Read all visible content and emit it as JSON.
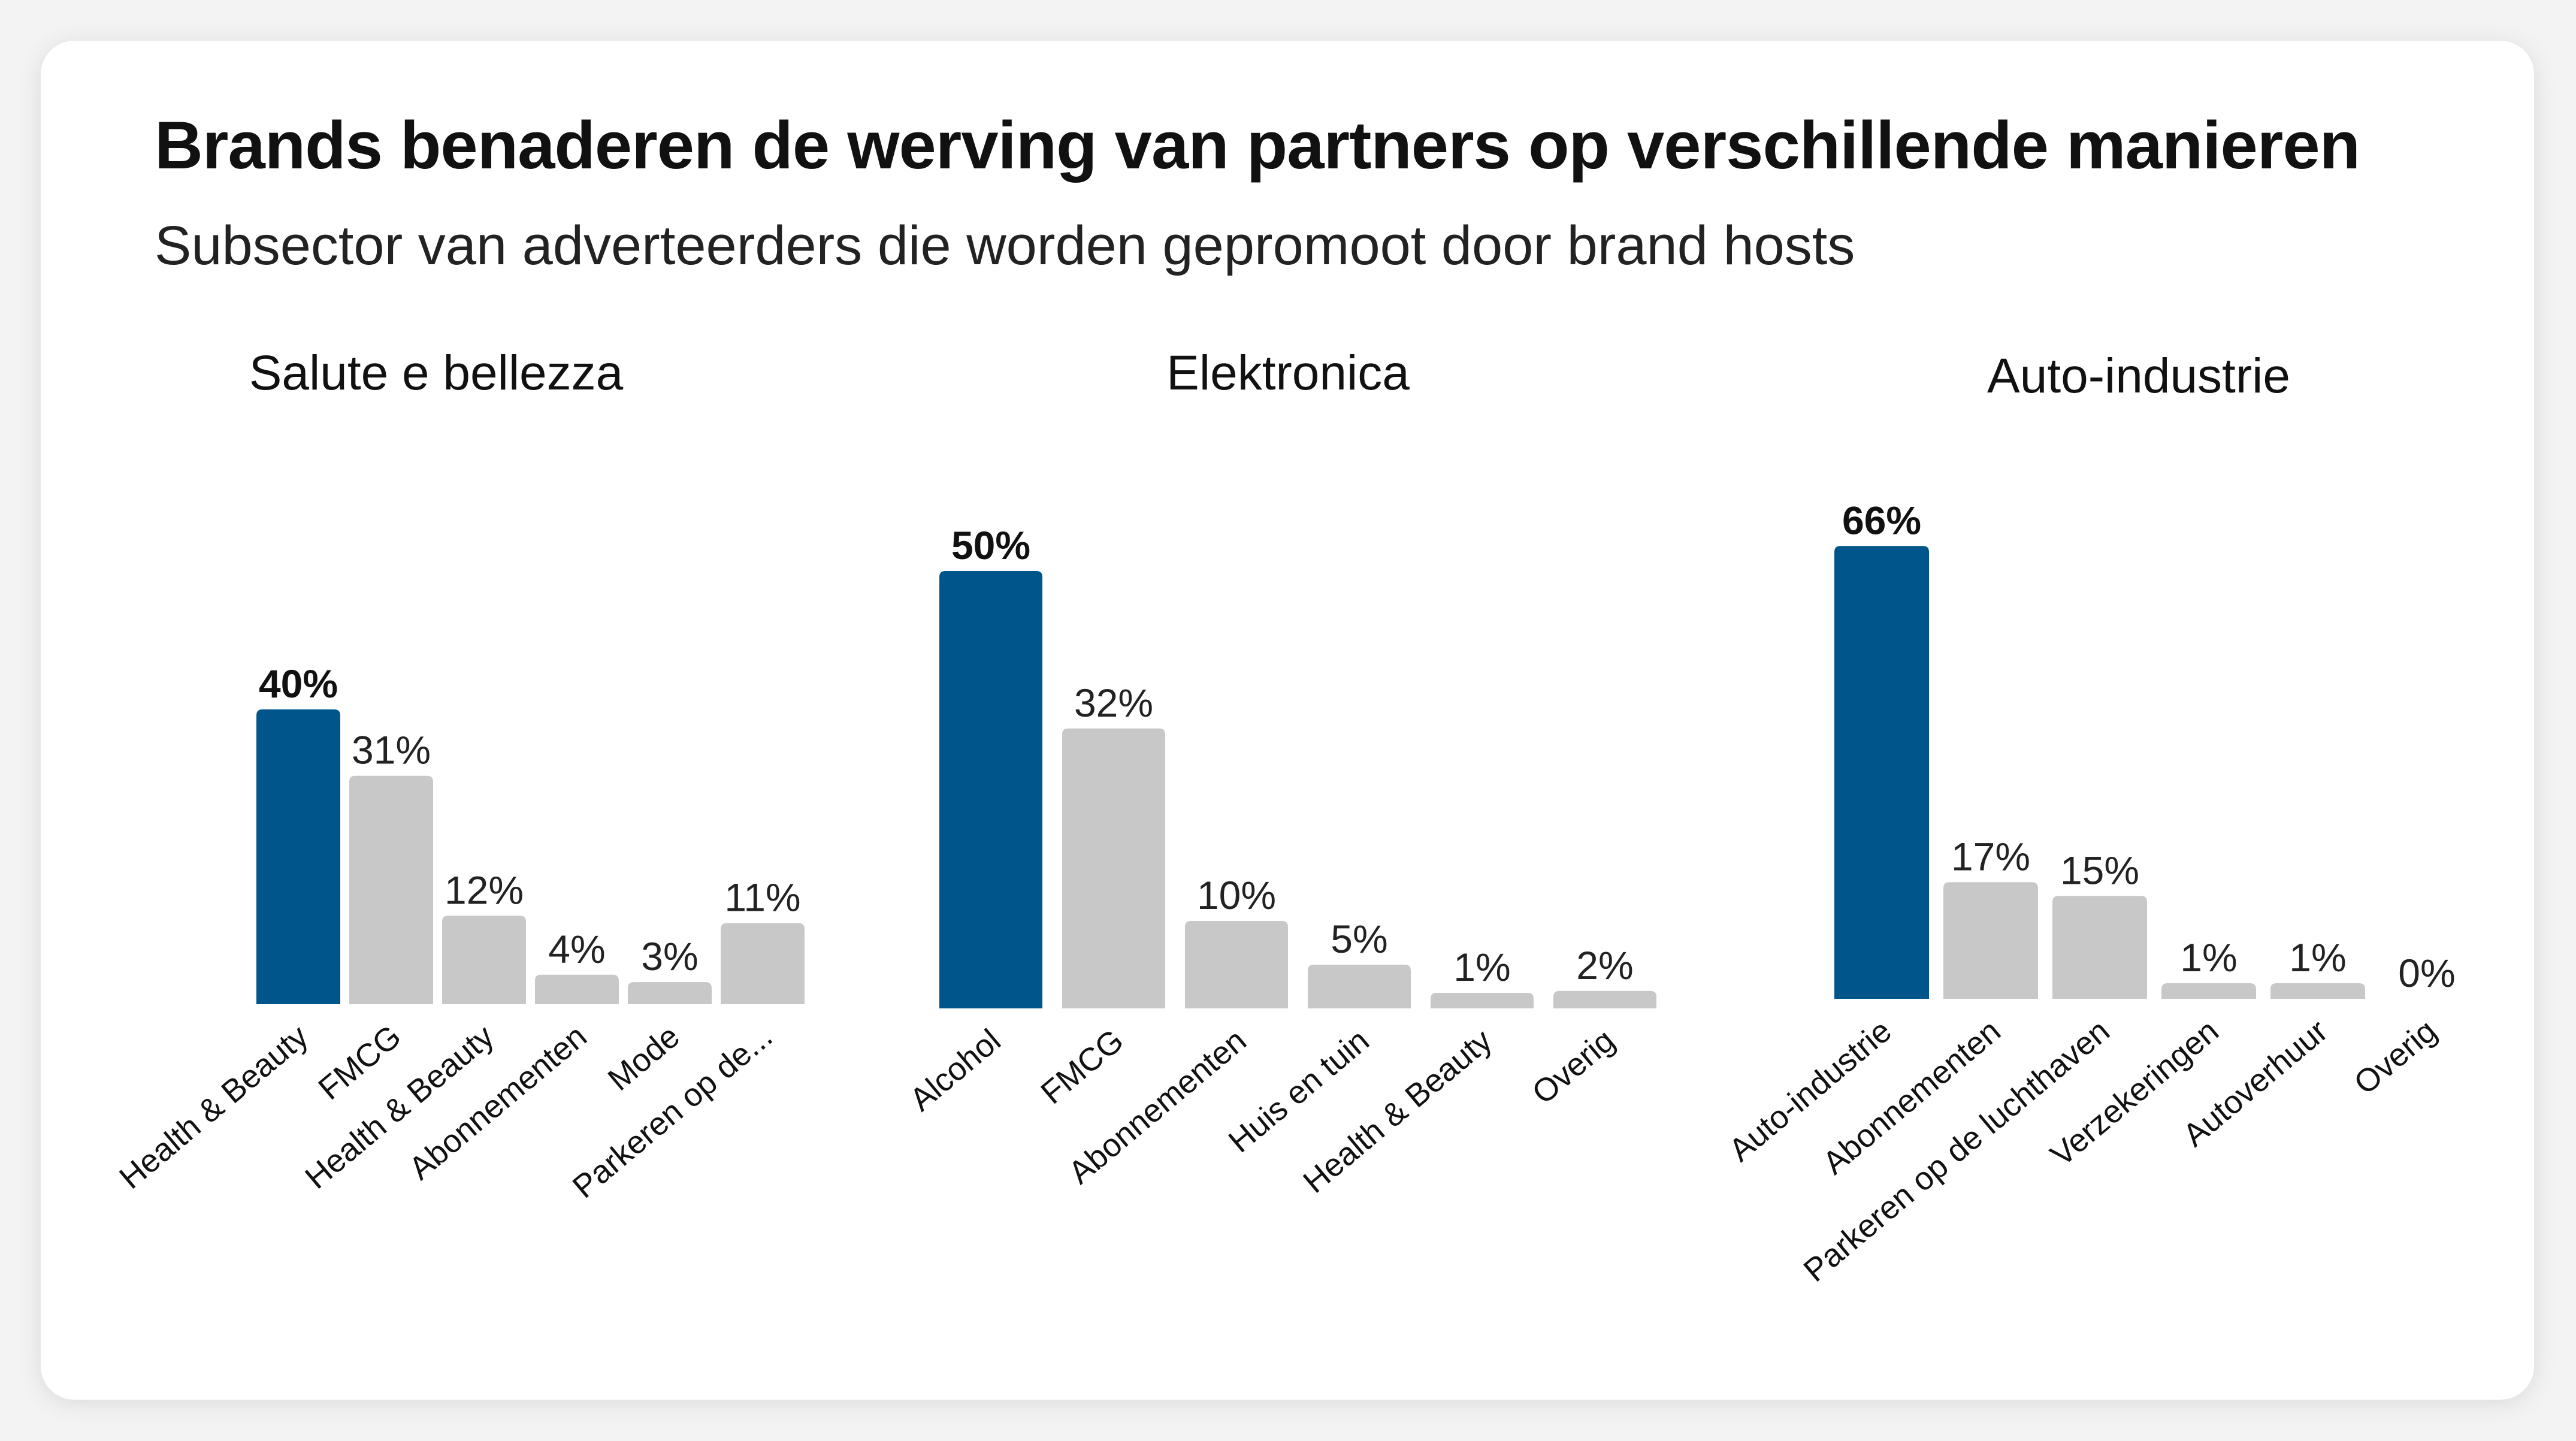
{
  "title": "Brands benaderen de werving van partners op verschillende manieren",
  "subtitle": "Subsector van adverteerders die worden gepromoot door brand hosts",
  "colors": {
    "highlight": "#00558b",
    "default": "#c8c8c8",
    "background": "#ffffff"
  },
  "chart_data": [
    {
      "type": "bar",
      "title": "Salute e bellezza",
      "categories": [
        "Health & Beauty",
        "FMCG",
        "Health & Beauty",
        "Abonnementen",
        "Mode",
        "Parkeren op de..."
      ],
      "values": [
        40,
        31,
        12,
        4,
        3,
        11
      ],
      "labels": [
        "40%",
        "31%",
        "12%",
        "4%",
        "3%",
        "11%"
      ],
      "highlight_index": 0,
      "ylim": [
        0,
        100
      ],
      "xlabel": "",
      "ylabel": ""
    },
    {
      "type": "bar",
      "title": "Elektronica",
      "categories": [
        "Alcohol",
        "FMCG",
        "Abonnementen",
        "Huis en tuin",
        "Health & Beauty",
        "Overig"
      ],
      "values": [
        50,
        32,
        10,
        5,
        1,
        2
      ],
      "labels": [
        "50%",
        "32%",
        "10%",
        "5%",
        "1%",
        "2%"
      ],
      "highlight_index": 0,
      "ylim": [
        0,
        100
      ],
      "xlabel": "",
      "ylabel": ""
    },
    {
      "type": "bar",
      "title": "Auto-industrie",
      "categories": [
        "Auto-industrie",
        "Abonnementen",
        "Parkeren op de luchthaven",
        "Verzekeringen",
        "Autoverhuur",
        "Overig"
      ],
      "values": [
        66,
        17,
        15,
        1,
        1,
        0
      ],
      "labels": [
        "66%",
        "17%",
        "15%",
        "1%",
        "1%",
        "0%"
      ],
      "highlight_index": 0,
      "ylim": [
        0,
        100
      ],
      "xlabel": "",
      "ylabel": ""
    }
  ]
}
